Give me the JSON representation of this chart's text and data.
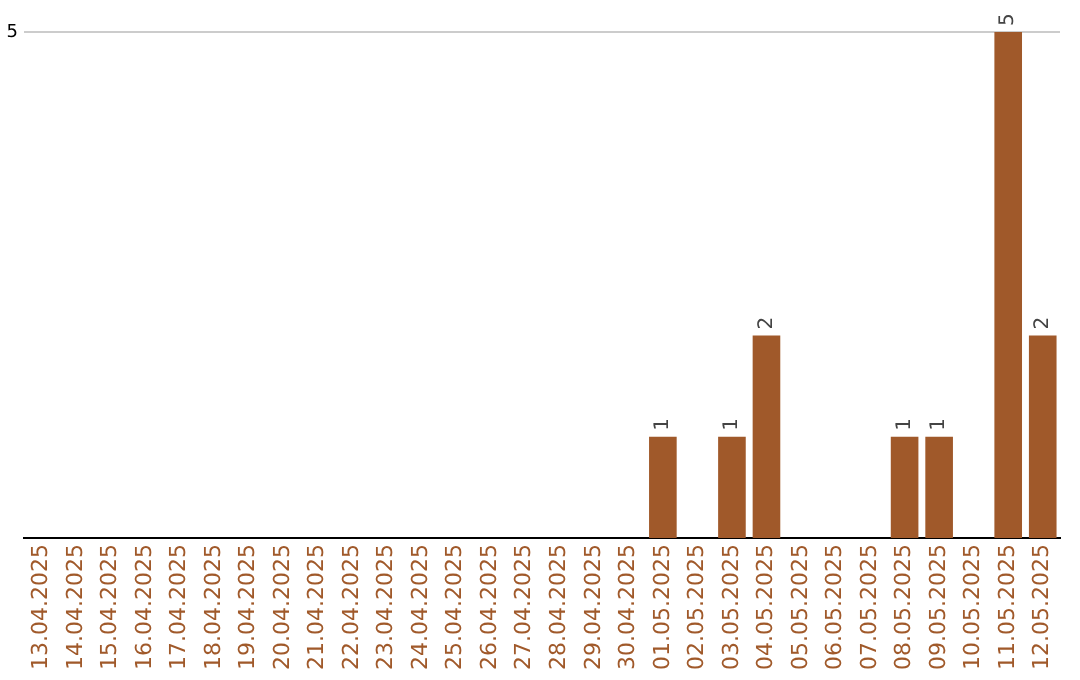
{
  "chart_data": {
    "type": "bar",
    "categories": [
      "13.04.2025",
      "14.04.2025",
      "15.04.2025",
      "16.04.2025",
      "17.04.2025",
      "18.04.2025",
      "19.04.2025",
      "20.04.2025",
      "21.04.2025",
      "22.04.2025",
      "23.04.2025",
      "24.04.2025",
      "25.04.2025",
      "26.04.2025",
      "27.04.2025",
      "28.04.2025",
      "29.04.2025",
      "30.04.2025",
      "01.05.2025",
      "02.05.2025",
      "03.05.2025",
      "04.05.2025",
      "05.05.2025",
      "06.05.2025",
      "07.05.2025",
      "08.05.2025",
      "09.05.2025",
      "10.05.2025",
      "11.05.2025",
      "12.05.2025"
    ],
    "values": [
      null,
      null,
      null,
      null,
      null,
      null,
      null,
      null,
      null,
      null,
      null,
      null,
      null,
      null,
      null,
      null,
      null,
      null,
      1,
      null,
      1,
      2,
      null,
      null,
      null,
      1,
      1,
      null,
      5,
      2
    ],
    "data_labels": true,
    "color": "#a0592a",
    "ylim": [
      0,
      5
    ],
    "ref_lines": [
      {
        "axis": "y",
        "value": 5,
        "label": "5",
        "color": "#cccccc"
      }
    ],
    "legend": false
  }
}
